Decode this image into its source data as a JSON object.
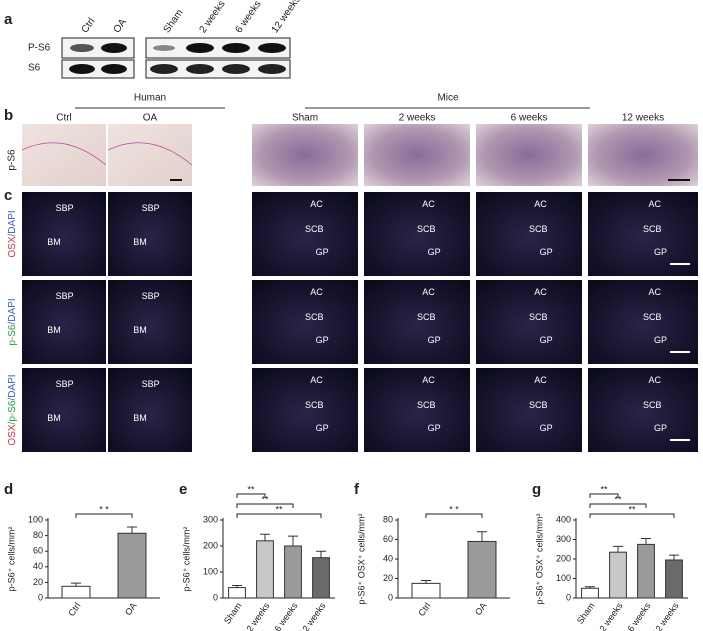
{
  "panel_a": {
    "label": "a",
    "lanes_left": [
      "Ctrl",
      "OA"
    ],
    "lanes_right": [
      "Sham",
      "2 weeks",
      "6 weeks",
      "12 weeks"
    ],
    "rows": [
      "P-S6",
      "S6"
    ]
  },
  "panel_b": {
    "label": "b",
    "groups": [
      "Human",
      "Mice"
    ],
    "columns": [
      "Ctrl",
      "OA",
      "Sham",
      "2 weeks",
      "6 weeks",
      "12 weeks"
    ],
    "row_label": "p-S6"
  },
  "panel_c": {
    "label": "c",
    "rows": [
      [
        "OSX",
        "/DAPI"
      ],
      [
        "p-S6",
        "/DAPI"
      ],
      [
        "OSX",
        "/p-S6",
        "/DAPI"
      ]
    ],
    "row_colors": [
      "#d0304a",
      "#3b5cc4",
      "#2e9e4a"
    ],
    "region_labels": {
      "human": [
        "SBP",
        "BM"
      ],
      "mice": [
        "AC",
        "SCB",
        "GP"
      ]
    }
  },
  "chart_data": [
    {
      "type": "bar",
      "label": "d",
      "y_label": "p-S6⁺ cells/mm²",
      "categories": [
        "Ctrl",
        "OA"
      ],
      "values": [
        15,
        83
      ],
      "errors": [
        4,
        8
      ],
      "colors": [
        "#ffffff",
        "#9a9a9a"
      ],
      "ylim": [
        0,
        100
      ],
      "yticks": [
        0,
        20,
        40,
        60,
        80,
        100
      ],
      "annotations": [
        "* *"
      ]
    },
    {
      "type": "bar",
      "label": "e",
      "y_label": "p-S6⁺ cells/mm²",
      "categories": [
        "Sham",
        "2 weeks",
        "6 weeks",
        "12 weeks"
      ],
      "values": [
        40,
        220,
        200,
        155
      ],
      "errors": [
        8,
        25,
        38,
        25
      ],
      "colors": [
        "#ffffff",
        "#c8c8c8",
        "#9a9a9a",
        "#6a6a6a"
      ],
      "ylim": [
        0,
        300
      ],
      "yticks": [
        0,
        100,
        200,
        300
      ],
      "annotations": [
        "**",
        "**",
        "**"
      ]
    },
    {
      "type": "bar",
      "label": "f",
      "y_label": "p-S6⁺ OSX⁺ cells/mm²",
      "categories": [
        "Ctrl",
        "OA"
      ],
      "values": [
        15,
        58
      ],
      "errors": [
        3,
        10
      ],
      "colors": [
        "#ffffff",
        "#9a9a9a"
      ],
      "ylim": [
        0,
        80
      ],
      "yticks": [
        0,
        20,
        40,
        60,
        80
      ],
      "annotations": [
        "* *"
      ]
    },
    {
      "type": "bar",
      "label": "g",
      "y_label": "p-S6⁺ OSX⁺ cells/mm²",
      "categories": [
        "Sham",
        "2 weeks",
        "6 weeks",
        "12 weeks"
      ],
      "values": [
        50,
        235,
        275,
        195
      ],
      "errors": [
        8,
        30,
        30,
        25
      ],
      "colors": [
        "#ffffff",
        "#c8c8c8",
        "#9a9a9a",
        "#6a6a6a"
      ],
      "ylim": [
        0,
        400
      ],
      "yticks": [
        0,
        100,
        200,
        300,
        400
      ],
      "annotations": [
        "**",
        "**",
        "**"
      ]
    }
  ]
}
